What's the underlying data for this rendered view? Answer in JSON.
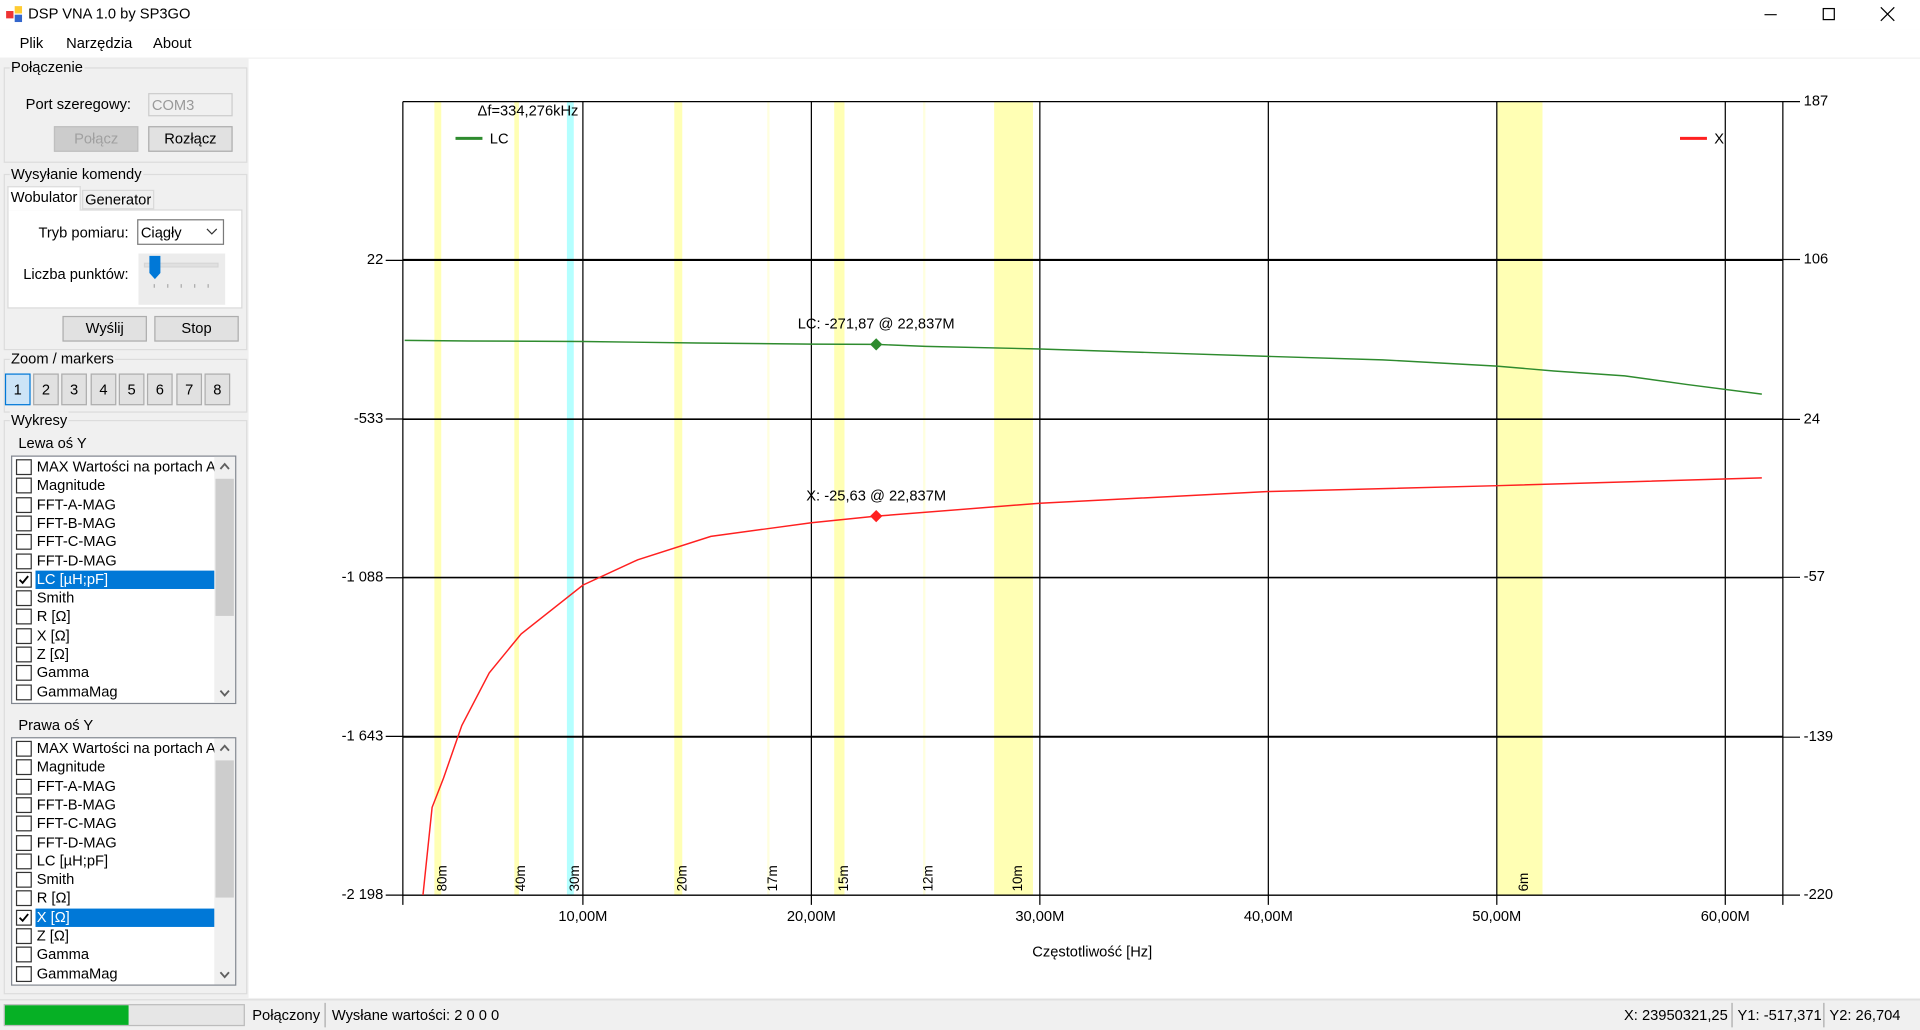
{
  "window": {
    "title": "DSP VNA 1.0 by SP3GO"
  },
  "menu": [
    "Plik",
    "Narzędzia",
    "About"
  ],
  "connection": {
    "title": "Połączenie",
    "port_label": "Port szeregowy:",
    "port": "COM3",
    "connect": "Połącz",
    "disconnect": "Rozłącz"
  },
  "command": {
    "title": "Wysyłanie komendy",
    "tabs": [
      "Wobulator",
      "Generator"
    ],
    "mode_label": "Tryb pomiaru:",
    "mode": "Ciągły",
    "points_label": "Liczba punktów:",
    "send": "Wyślij",
    "stop": "Stop"
  },
  "zoom": {
    "title": "Zoom / markers",
    "buttons": [
      "1",
      "2",
      "3",
      "4",
      "5",
      "6",
      "7",
      "8"
    ],
    "selected": 0
  },
  "plots": {
    "title": "Wykresy",
    "left": {
      "title": "Lewa oś Y",
      "checked": 6,
      "items": [
        "MAX Wartości na portach ADC",
        "Magnitude",
        "FFT-A-MAG",
        "FFT-B-MAG",
        "FFT-C-MAG",
        "FFT-D-MAG",
        "LC [µH;pF]",
        "Smith",
        "R [Ω]",
        "X [Ω]",
        "Z [Ω]",
        "Gamma",
        "GammaMag"
      ]
    },
    "right": {
      "title": "Prawa oś Y",
      "checked": 9,
      "items": [
        "MAX Wartości na portach ADC",
        "Magnitude",
        "FFT-A-MAG",
        "FFT-B-MAG",
        "FFT-C-MAG",
        "FFT-D-MAG",
        "LC [µH;pF]",
        "Smith",
        "R [Ω]",
        "X [Ω]",
        "Z [Ω]",
        "Gamma",
        "GammaMag"
      ]
    }
  },
  "chart_data": {
    "type": "line",
    "x_label": "Częstotliwość [Hz]",
    "annotation": "Δf=334,276kHz",
    "grid": true,
    "xlim": [
      2120000,
      62520000
    ],
    "xticks": [
      {
        "value": 10000000,
        "label": "10,00M"
      },
      {
        "value": 20000000,
        "label": "20,00M"
      },
      {
        "value": 30000000,
        "label": "30,00M"
      },
      {
        "value": 40000000,
        "label": "40,00M"
      },
      {
        "value": 50000000,
        "label": "50,00M"
      },
      {
        "value": 60000000,
        "label": "60,00M"
      }
    ],
    "ylim": [
      -2198,
      577
    ],
    "yticks": [
      22,
      -533,
      {
        "value": -1088,
        "label": "-1 088"
      },
      {
        "value": -1643,
        "label": "-1 643"
      },
      {
        "value": -2198,
        "label": "-2 198"
      }
    ],
    "y2lim": [
      -220,
      187
    ],
    "y2ticks": [
      187,
      106,
      24,
      -57,
      -139,
      -220
    ],
    "bands": [
      {
        "name": "80m",
        "from": 3500000,
        "to": 3800000,
        "color": "#ffffb4"
      },
      {
        "name": "40m",
        "from": 7000000,
        "to": 7200000,
        "color": "#ffffb4"
      },
      {
        "name": "30m",
        "from": 9300000,
        "to": 9600000,
        "color": "#b4ffff"
      },
      {
        "name": "20m",
        "from": 14000000,
        "to": 14350000,
        "color": "#ffffb4"
      },
      {
        "name": "17m",
        "from": 18068000,
        "to": 18168000,
        "color": "#ffffde"
      },
      {
        "name": "15m",
        "from": 21000000,
        "to": 21450000,
        "color": "#ffffb4"
      },
      {
        "name": "12m",
        "from": 24890000,
        "to": 24990000,
        "color": "#ffffde"
      },
      {
        "name": "10m",
        "from": 28000000,
        "to": 29700000,
        "color": "#ffffb4"
      },
      {
        "name": "6m",
        "from": 50000000,
        "to": 52000000,
        "color": "#ffffb4"
      }
    ],
    "series": [
      {
        "name": "LC",
        "color": "#2e8b2e",
        "axis": "y",
        "legend": "top-left",
        "x": [
          2200000,
          5000000,
          10000000,
          15000000,
          20000000,
          22837000,
          25000000,
          30000000,
          35000000,
          40000000,
          45000000,
          50000000,
          52500000,
          55600000,
          58300000,
          61600000
        ],
        "values": [
          -258,
          -260,
          -262,
          -267,
          -271,
          -271.87,
          -279,
          -288,
          -301,
          -314,
          -326,
          -348,
          -365,
          -382,
          -412,
          -446
        ],
        "marker": {
          "x": 22837000,
          "value": -271.87,
          "label": "LC: -271,87 @ 22,837M"
        }
      },
      {
        "name": "X",
        "color": "#ff2020",
        "axis": "y2",
        "legend": "top-right",
        "x": [
          3000000,
          3400000,
          3900000,
          4700000,
          5900000,
          7300000,
          10000000,
          12400000,
          15600000,
          20000000,
          22837000,
          30000000,
          40000000,
          50000000,
          61600000
        ],
        "values": [
          -220,
          -175,
          -160,
          -133,
          -106,
          -86,
          -61,
          -48,
          -36,
          -29,
          -25.63,
          -19,
          -13,
          -10,
          -6
        ],
        "marker": {
          "x": 22837000,
          "value": -25.63,
          "label": "X: -25,63 @ 22,837M"
        }
      }
    ]
  },
  "status": {
    "progress": 52,
    "state": "Połączony",
    "sent": "Wysłane wartości: 2 0 0 0",
    "x": "X: 23950321,25",
    "y1": "Y1: -517,371",
    "y2": "Y2: 26,704"
  }
}
